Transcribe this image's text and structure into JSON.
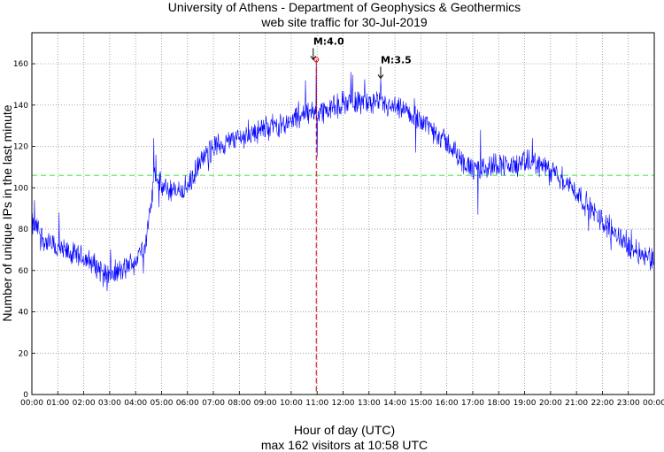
{
  "chart_data": {
    "type": "line",
    "title_line1": "University of Athens - Department of Geophysics & Geothermics",
    "title_line2": "web site traffic for 30-Jul-2019",
    "xlabel": "Hour of day (UTC)",
    "xlabel_line2": "max 162 visitors at 10:58 UTC",
    "ylabel": "Number of unique IPs in the last minute",
    "xlim": [
      0,
      24
    ],
    "ylim": [
      0,
      175
    ],
    "x_ticks": [
      "00:00",
      "01:00",
      "02:00",
      "03:00",
      "04:00",
      "05:00",
      "06:00",
      "07:00",
      "08:00",
      "09:00",
      "10:00",
      "11:00",
      "12:00",
      "13:00",
      "14:00",
      "15:00",
      "16:00",
      "17:00",
      "18:00",
      "19:00",
      "20:00",
      "21:00",
      "22:00",
      "23:00",
      "00:00"
    ],
    "y_ticks": [
      0,
      20,
      40,
      60,
      80,
      100,
      120,
      140,
      160
    ],
    "grid": true,
    "average": 106,
    "max_marker": {
      "hour": 10.967,
      "value": 162
    },
    "annotations": [
      {
        "label": "M:4.0",
        "hour": 10.85,
        "value": 162
      },
      {
        "label": "M:3.5",
        "hour": 13.45,
        "value": 153
      }
    ],
    "series": [
      {
        "name": "visitors",
        "color": "#0000ff",
        "trend_hours": [
          0,
          0.25,
          0.5,
          1,
          1.5,
          2,
          2.5,
          3,
          3.5,
          4,
          4.4,
          4.6,
          4.75,
          5,
          5.5,
          6,
          6.5,
          7,
          8,
          9,
          10,
          10.5,
          11,
          11.5,
          12,
          12.5,
          13,
          13.5,
          14,
          14.5,
          15,
          15.5,
          16,
          16.5,
          17,
          17.5,
          18,
          18.5,
          19,
          19.5,
          20,
          20.5,
          21,
          21.5,
          22,
          22.5,
          23,
          23.5,
          24
        ],
        "trend_values": [
          82,
          80,
          74,
          70,
          68,
          66,
          62,
          58,
          60,
          65,
          74,
          92,
          108,
          100,
          98,
          100,
          112,
          120,
          124,
          129,
          132,
          136,
          137,
          138,
          141,
          142,
          141,
          140,
          138,
          136,
          133,
          128,
          122,
          114,
          108,
          110,
          112,
          110,
          112,
          112,
          108,
          104,
          98,
          90,
          84,
          78,
          72,
          68,
          66
        ],
        "noise_amplitude": 5,
        "spikes": [
          {
            "hour": 0.1,
            "value": 94
          },
          {
            "hour": 1.05,
            "value": 88
          },
          {
            "hour": 2.9,
            "value": 50
          },
          {
            "hour": 4.7,
            "value": 124
          },
          {
            "hour": 4.78,
            "value": 116
          },
          {
            "hour": 10.55,
            "value": 152
          },
          {
            "hour": 10.967,
            "value": 162
          },
          {
            "hour": 11.0,
            "value": 115
          },
          {
            "hour": 12.3,
            "value": 156
          },
          {
            "hour": 13.45,
            "value": 153
          },
          {
            "hour": 14.8,
            "value": 117
          },
          {
            "hour": 17.2,
            "value": 87
          },
          {
            "hour": 17.3,
            "value": 128
          },
          {
            "hour": 19.3,
            "value": 124
          },
          {
            "hour": 23.85,
            "value": 60
          }
        ]
      }
    ]
  }
}
